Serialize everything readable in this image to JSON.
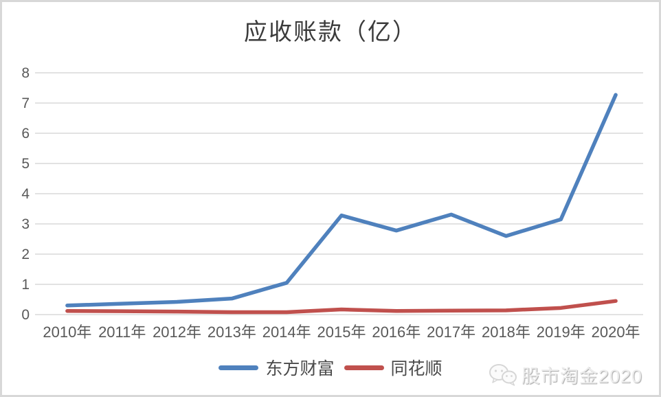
{
  "chart_data": {
    "type": "line",
    "title": "应收账款（亿）",
    "categories": [
      "2010年",
      "2011年",
      "2012年",
      "2013年",
      "2014年",
      "2015年",
      "2016年",
      "2017年",
      "2018年",
      "2019年",
      "2020年"
    ],
    "series": [
      {
        "name": "东方财富",
        "color": "#4F81BD",
        "values": [
          0.3,
          0.36,
          0.42,
          0.53,
          1.05,
          3.28,
          2.78,
          3.31,
          2.6,
          3.15,
          7.27
        ]
      },
      {
        "name": "同花顺",
        "color": "#C0504D",
        "values": [
          0.12,
          0.11,
          0.1,
          0.08,
          0.08,
          0.17,
          0.12,
          0.13,
          0.14,
          0.22,
          0.45
        ]
      }
    ],
    "xlabel": "",
    "ylabel": "",
    "ylim": [
      0,
      8
    ],
    "y_ticks": [
      0,
      1,
      2,
      3,
      4,
      5,
      6,
      7,
      8
    ],
    "grid": true,
    "legend_position": "bottom"
  },
  "watermark": {
    "text": "股市淘金2020",
    "icon": "wechat-icon"
  },
  "colors": {
    "gridline": "#D9D9D9",
    "axis_text": "#595959",
    "title_text": "#3B3B3B",
    "border": "#D8D8D8",
    "background": "#FFFFFF"
  }
}
